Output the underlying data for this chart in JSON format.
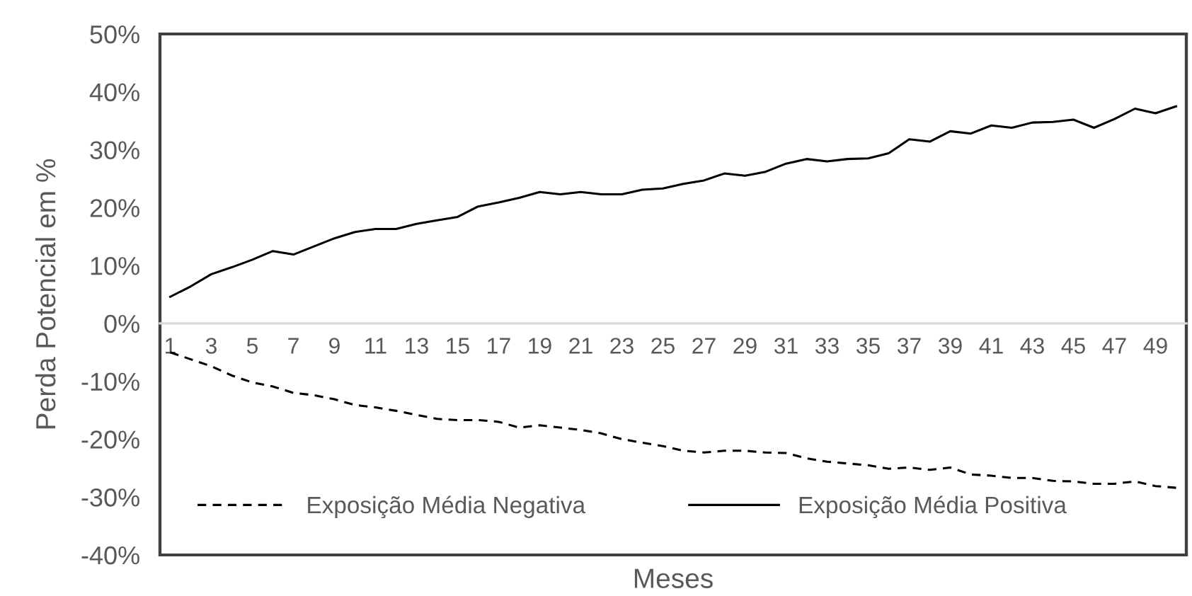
{
  "chart_data": {
    "type": "line",
    "xlabel": "Meses",
    "ylabel": "Perda Potencial em %",
    "categories": [
      "1",
      null,
      "3",
      null,
      "5",
      null,
      "7",
      null,
      "9",
      null,
      "11",
      null,
      "13",
      null,
      "15",
      null,
      "17",
      null,
      "19",
      null,
      "21",
      null,
      "23",
      null,
      "25",
      null,
      "27",
      null,
      "29",
      null,
      "31",
      null,
      "33",
      null,
      "35",
      null,
      "37",
      null,
      "39",
      null,
      "41",
      null,
      "43",
      null,
      "45",
      null,
      "47",
      null,
      "49",
      null
    ],
    "series": [
      {
        "name": "Exposição Média Negativa",
        "color": "#000000",
        "line_style": "dashed",
        "values": [
          -5.0,
          -6.2,
          -7.4,
          -9.0,
          -10.2,
          -10.9,
          -12.0,
          -12.4,
          -13.1,
          -14.1,
          -14.5,
          -15.1,
          -15.8,
          -16.5,
          -16.7,
          -16.7,
          -17.0,
          -18.0,
          -17.6,
          -18.0,
          -18.4,
          -19.0,
          -20.0,
          -20.6,
          -21.2,
          -22.0,
          -22.3,
          -22.0,
          -22.0,
          -22.3,
          -22.4,
          -23.3,
          -23.9,
          -24.2,
          -24.5,
          -25.1,
          -24.9,
          -25.3,
          -24.9,
          -26.1,
          -26.3,
          -26.7,
          -26.7,
          -27.2,
          -27.3,
          -27.7,
          -27.7,
          -27.3,
          -28.1,
          -28.4
        ]
      },
      {
        "name": "Exposição Média Positiva",
        "color": "#000000",
        "line_style": "solid",
        "values": [
          4.6,
          6.4,
          8.5,
          9.7,
          11.0,
          12.5,
          11.9,
          13.3,
          14.7,
          15.8,
          16.3,
          16.3,
          17.2,
          17.8,
          18.4,
          20.2,
          20.9,
          21.7,
          22.7,
          22.3,
          22.7,
          22.3,
          22.3,
          23.1,
          23.3,
          24.1,
          24.7,
          25.9,
          25.5,
          26.2,
          27.6,
          28.4,
          28.0,
          28.4,
          28.5,
          29.4,
          31.8,
          31.4,
          33.2,
          32.8,
          34.2,
          33.8,
          34.7,
          34.8,
          35.2,
          33.8,
          35.3,
          37.1,
          36.3,
          37.5
        ]
      }
    ],
    "ylim": [
      -40,
      50
    ],
    "yticks": [
      {
        "value": -40,
        "label": "-40%"
      },
      {
        "value": -30,
        "label": "-30%"
      },
      {
        "value": -20,
        "label": "-20%"
      },
      {
        "value": -10,
        "label": "-10%"
      },
      {
        "value": 0,
        "label": "0%"
      },
      {
        "value": 10,
        "label": "10%"
      },
      {
        "value": 20,
        "label": "20%"
      },
      {
        "value": 30,
        "label": "30%"
      },
      {
        "value": 40,
        "label": "40%"
      },
      {
        "value": 50,
        "label": "50%"
      }
    ],
    "legend": "bottom"
  }
}
